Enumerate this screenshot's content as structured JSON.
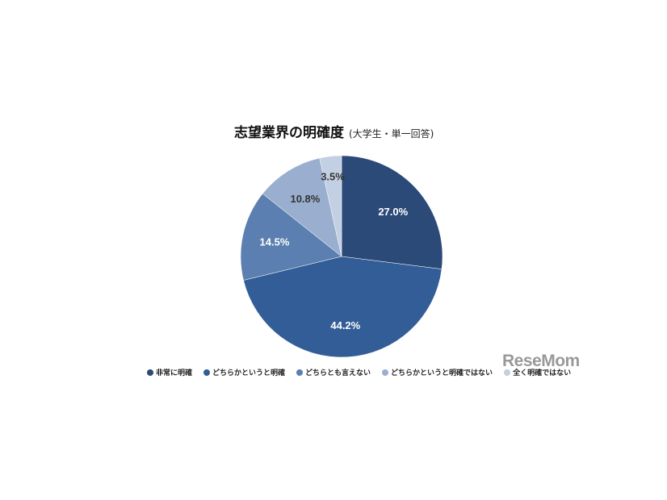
{
  "chart_data": {
    "type": "pie",
    "title": "志望業界の明確度",
    "subtitle": "(大学生・単一回答)",
    "start": "top",
    "direction": "clockwise",
    "slices": [
      {
        "name": "非常に明確",
        "value": 27.0,
        "label": "27.0%",
        "color": "#2b4a78",
        "label_color": "#ffffff"
      },
      {
        "name": "どちらかというと明確",
        "value": 44.2,
        "label": "44.2%",
        "color": "#335d96",
        "label_color": "#ffffff"
      },
      {
        "name": "どちらとも言えない",
        "value": 14.5,
        "label": "14.5%",
        "color": "#5b7fb0",
        "label_color": "#ffffff"
      },
      {
        "name": "どちらかというと明確ではない",
        "value": 10.8,
        "label": "10.8%",
        "color": "#9aafcf",
        "label_color": "#333333"
      },
      {
        "name": "全く明確ではない",
        "value": 3.5,
        "label": "3.5%",
        "color": "#c3cfe2",
        "label_color": "#333333"
      }
    ],
    "legend_position": "bottom"
  },
  "watermark": "ReseMom"
}
